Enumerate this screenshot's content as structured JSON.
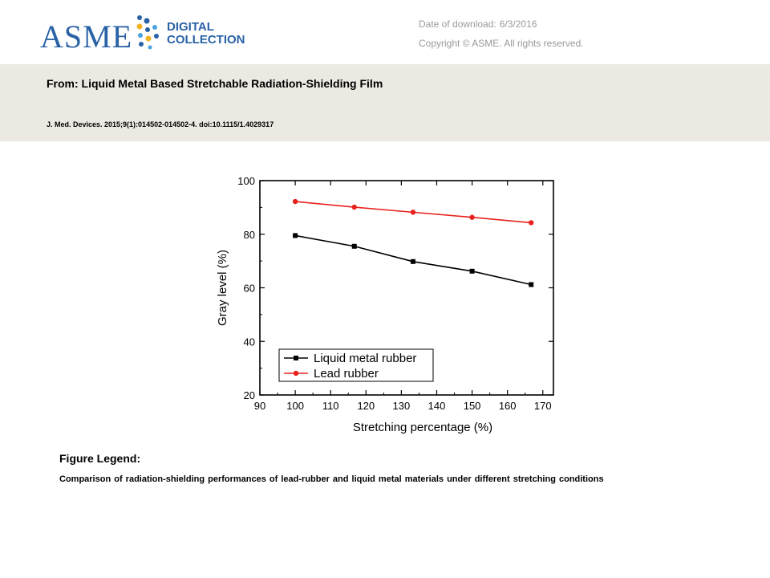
{
  "header": {
    "logo_text": "ASME",
    "logo_sub1": "DIGITAL",
    "logo_sub2": "COLLECTION",
    "download_label": "Date of download:",
    "download_date": "6/3/2016",
    "copyright": "Copyright © ASME. All rights reserved."
  },
  "article": {
    "title": "From: Liquid Metal Based Stretchable Radiation-Shielding Film",
    "citation": "J. Med. Devices. 2015;9(1):014502-014502-4. doi:10.1115/1.4029317"
  },
  "figure": {
    "legend_heading": "Figure Legend:",
    "legend_text": "Comparison of radiation-shielding performances of lead-rubber and liquid metal materials under different stretching conditions"
  },
  "chart_data": {
    "type": "line",
    "title": "",
    "xlabel": "Stretching percentage (%)",
    "ylabel": "Gray level (%)",
    "xlim": [
      90,
      173
    ],
    "ylim": [
      20,
      100
    ],
    "xticks": [
      90,
      100,
      110,
      120,
      130,
      140,
      150,
      160,
      170
    ],
    "yticks": [
      20,
      40,
      60,
      80,
      100
    ],
    "grid": false,
    "legend_position": "bottom-left",
    "series": [
      {
        "name": "Liquid metal rubber",
        "color": "#000000",
        "marker": "square",
        "x": [
          100,
          116.7,
          133.3,
          150,
          166.7
        ],
        "y": [
          79.5,
          75.5,
          69.8,
          66.2,
          61.2
        ]
      },
      {
        "name": "Lead rubber",
        "color": "#e8211d",
        "marker": "circle",
        "x": [
          100,
          116.7,
          133.3,
          150,
          166.7
        ],
        "y": [
          92.2,
          90.1,
          88.2,
          86.3,
          84.3
        ]
      }
    ]
  }
}
